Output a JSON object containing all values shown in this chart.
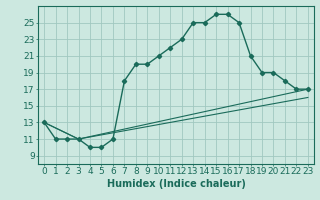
{
  "xlabel": "Humidex (Indice chaleur)",
  "bg_color": "#cce8e0",
  "grid_color": "#a0c8c0",
  "line_color": "#1a6b5a",
  "xlim": [
    -0.5,
    23.5
  ],
  "ylim": [
    8.0,
    27.0
  ],
  "xticks": [
    0,
    1,
    2,
    3,
    4,
    5,
    6,
    7,
    8,
    9,
    10,
    11,
    12,
    13,
    14,
    15,
    16,
    17,
    18,
    19,
    20,
    21,
    22,
    23
  ],
  "yticks": [
    9,
    11,
    13,
    15,
    17,
    19,
    21,
    23,
    25
  ],
  "line1_x": [
    0,
    1,
    2,
    3,
    4,
    5,
    6,
    7,
    8,
    9,
    10,
    11,
    12,
    13,
    14,
    15,
    16,
    17,
    18,
    19,
    20,
    21,
    22,
    23
  ],
  "line1_y": [
    13,
    11,
    11,
    11,
    10,
    10,
    11,
    18,
    20,
    20,
    21,
    22,
    23,
    25,
    25,
    26,
    26,
    25,
    21,
    19,
    19,
    18,
    17,
    17
  ],
  "line2_x": [
    0,
    3,
    23
  ],
  "line2_y": [
    13,
    11,
    16
  ],
  "line3_x": [
    0,
    3,
    23
  ],
  "line3_y": [
    13,
    11,
    17
  ],
  "xlabel_fontsize": 7,
  "tick_fontsize": 6.5
}
